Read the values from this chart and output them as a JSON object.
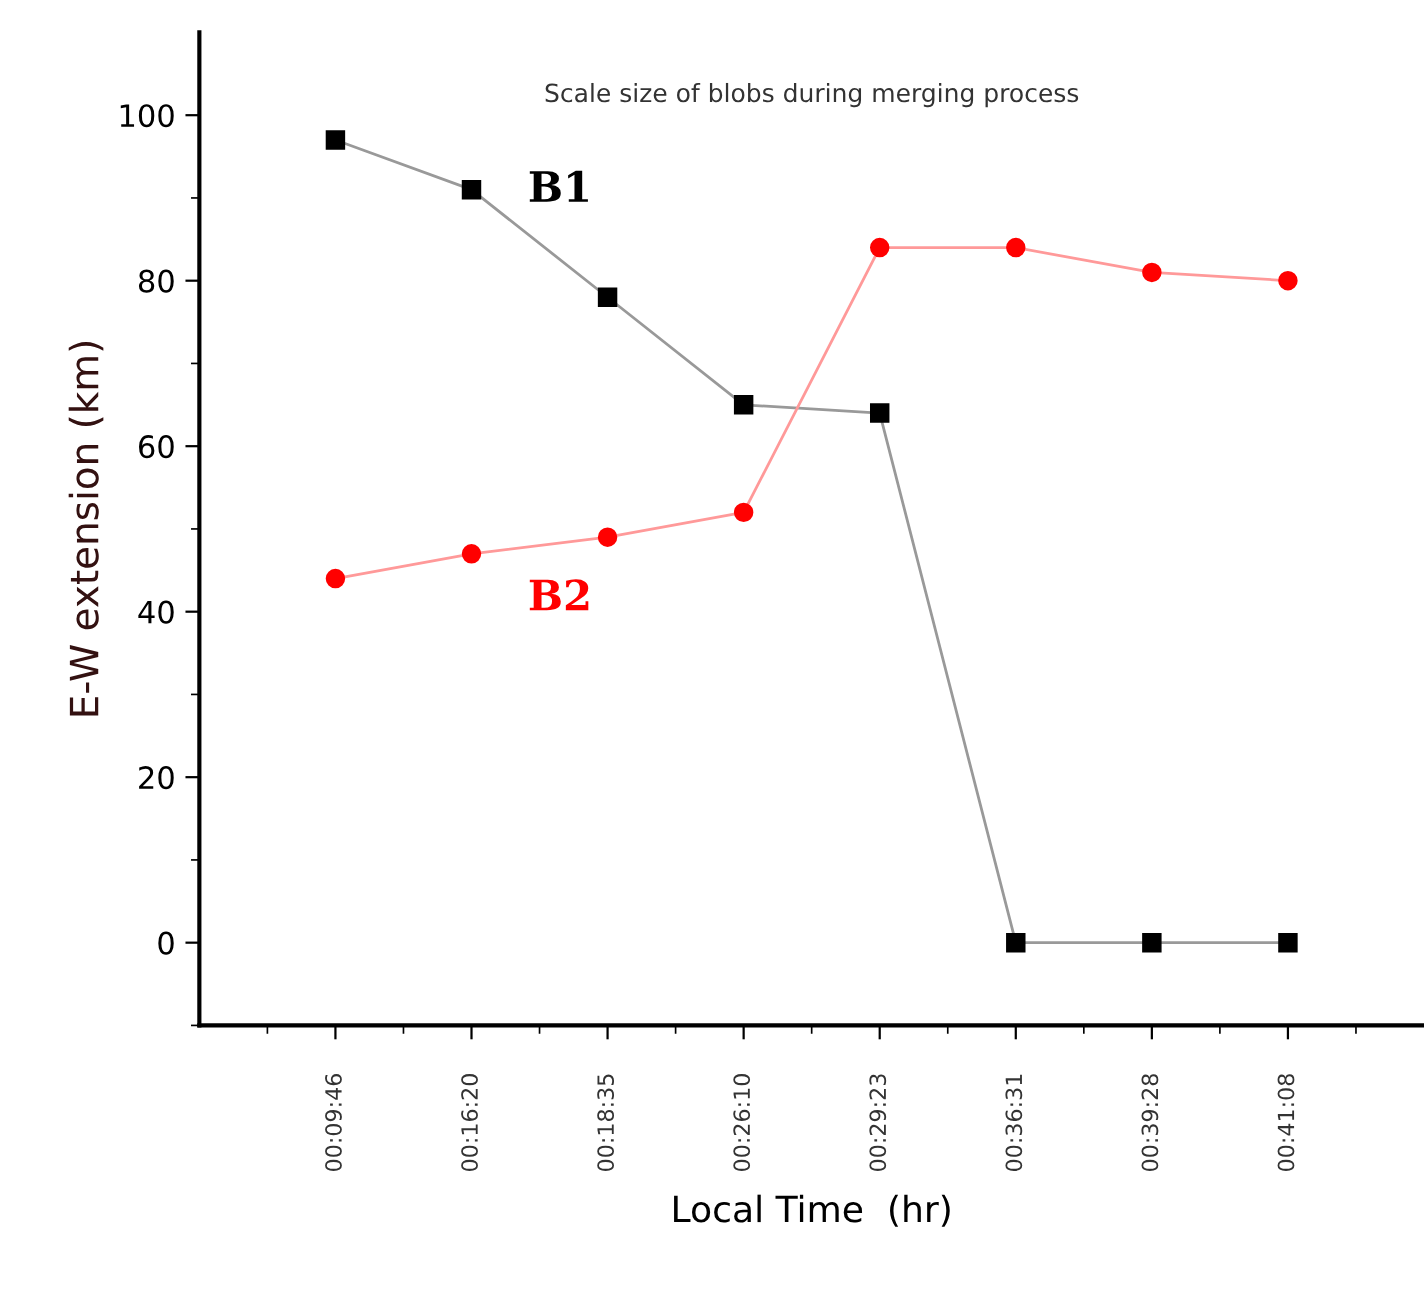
{
  "chart_data": {
    "type": "line",
    "title": "Scale size of blobs during merging process",
    "xlabel": "Local Time  (hr)",
    "ylabel": "E-W extension (km)",
    "categories": [
      "00:09:46",
      "00:16:20",
      "00:18:35",
      "00:26:10",
      "00:29:23",
      "00:36:31",
      "00:39:28",
      "00:41:08"
    ],
    "series": [
      {
        "name": "B1",
        "color": "#000000",
        "marker": "square",
        "values": [
          97,
          91,
          78,
          65,
          64,
          0,
          0,
          0
        ]
      },
      {
        "name": "B2",
        "color": "#ff0000",
        "marker": "circle",
        "values": [
          44,
          47,
          49,
          52,
          84,
          84,
          81,
          80
        ]
      }
    ],
    "ylim": [
      -10,
      110
    ],
    "yticks": [
      0,
      20,
      40,
      60,
      80,
      100
    ],
    "grid": false,
    "legend": false
  }
}
